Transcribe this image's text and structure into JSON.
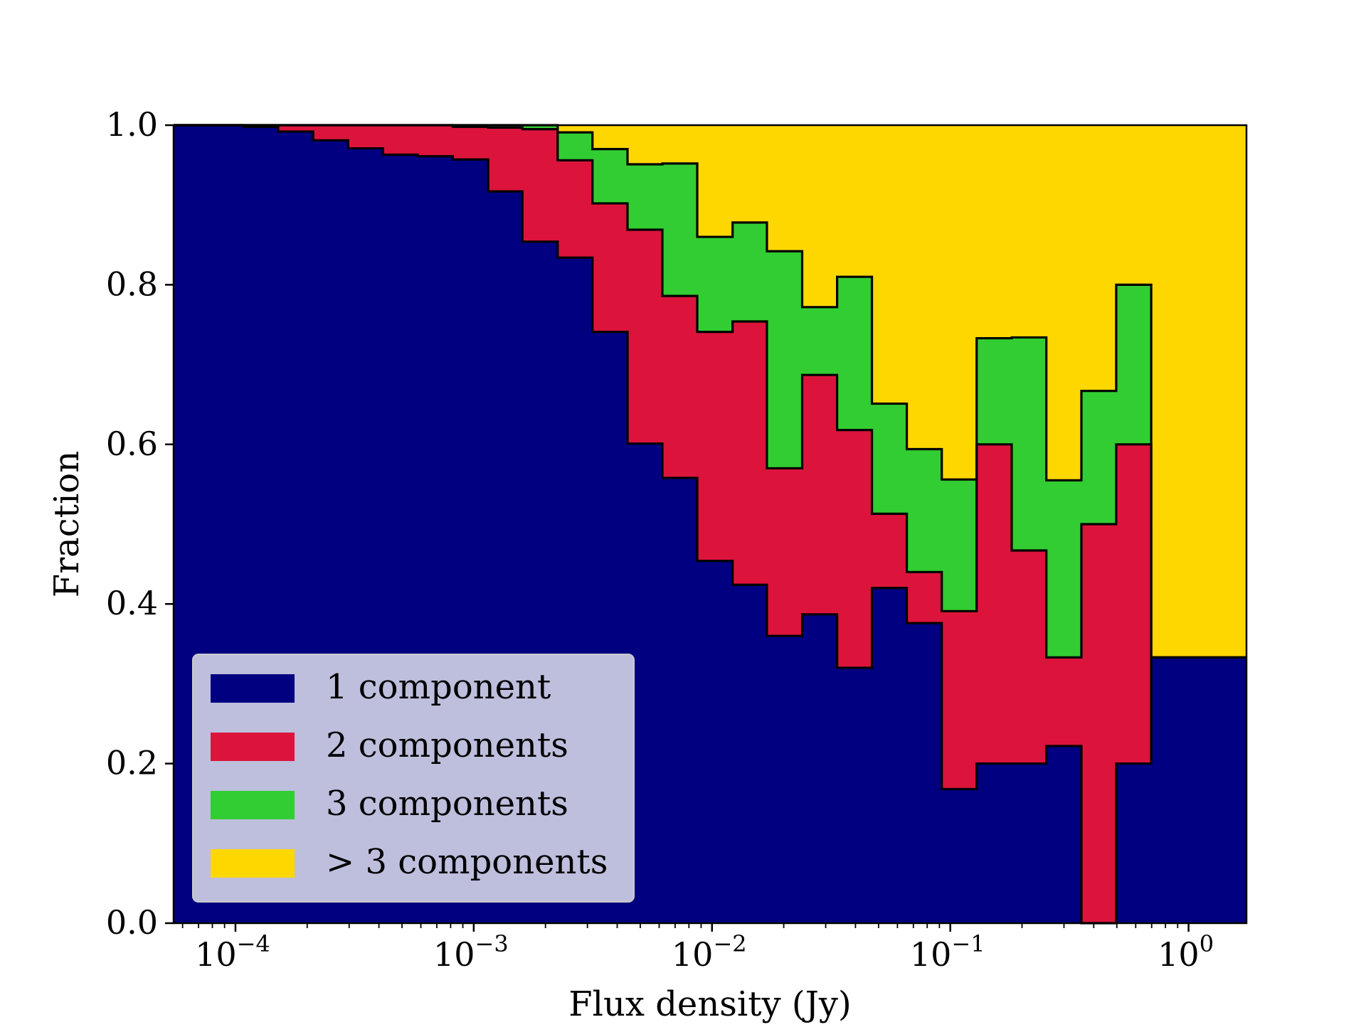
{
  "chart_data": {
    "type": "bar",
    "subtype": "stacked-step-histogram",
    "title": "",
    "xlabel": "Flux density (Jy)",
    "ylabel": "Fraction",
    "xscale": "log",
    "xlim": [
      5.5e-05,
      1.75
    ],
    "ylim": [
      0.0,
      1.0
    ],
    "grid": false,
    "legend_position": "lower-left",
    "x_ticks": [
      {
        "value": 0.0001,
        "base": "10",
        "exp": "−4"
      },
      {
        "value": 0.001,
        "base": "10",
        "exp": "−3"
      },
      {
        "value": 0.01,
        "base": "10",
        "exp": "−2"
      },
      {
        "value": 0.1,
        "base": "10",
        "exp": "−1"
      },
      {
        "value": 1,
        "base": "10",
        "exp": "0"
      }
    ],
    "y_ticks": [
      {
        "value": 0.0,
        "label": "0.0"
      },
      {
        "value": 0.2,
        "label": "0.2"
      },
      {
        "value": 0.4,
        "label": "0.4"
      },
      {
        "value": 0.6,
        "label": "0.6"
      },
      {
        "value": 0.8,
        "label": "0.8"
      },
      {
        "value": 1.0,
        "label": "1.0"
      }
    ],
    "bin_edges": [
      5.5e-05,
      7.7e-05,
      0.000108,
      0.000151,
      0.000212,
      0.000297,
      0.000416,
      0.000583,
      0.000817,
      0.00115,
      0.0016,
      0.00225,
      0.00315,
      0.00442,
      0.00619,
      0.00867,
      0.0122,
      0.017,
      0.0239,
      0.0335,
      0.0469,
      0.0657,
      0.0921,
      0.129,
      0.181,
      0.253,
      0.355,
      0.497,
      0.697,
      0.977,
      1.37,
      1.75
    ],
    "series": [
      {
        "name": "1 component",
        "color": "#000080",
        "values": [
          1.0,
          1.0,
          0.998,
          0.992,
          0.981,
          0.971,
          0.963,
          0.961,
          0.957,
          0.917,
          0.854,
          0.834,
          0.741,
          0.601,
          0.558,
          0.454,
          0.424,
          0.36,
          0.387,
          0.32,
          0.42,
          0.376,
          0.168,
          0.2,
          0.2,
          0.222,
          0.0,
          0.2,
          0.333,
          0.333,
          0.333
        ]
      },
      {
        "name": "2 components",
        "color": "#DC143C",
        "values": [
          0.0,
          0.0,
          0.002,
          0.008,
          0.019,
          0.029,
          0.037,
          0.039,
          0.041,
          0.08,
          0.141,
          0.122,
          0.161,
          0.268,
          0.228,
          0.287,
          0.33,
          0.21,
          0.3,
          0.298,
          0.093,
          0.064,
          0.223,
          0.4,
          0.267,
          0.111,
          0.5,
          0.4,
          0.0,
          0.0,
          0.0
        ]
      },
      {
        "name": "3 components",
        "color": "#32CD32",
        "values": [
          0.0,
          0.0,
          0.0,
          0.0,
          0.0,
          0.0,
          0.0,
          0.0,
          0.002,
          0.003,
          0.005,
          0.035,
          0.068,
          0.082,
          0.166,
          0.119,
          0.124,
          0.272,
          0.085,
          0.192,
          0.138,
          0.154,
          0.165,
          0.133,
          0.267,
          0.222,
          0.167,
          0.2,
          0.0,
          0.0,
          0.0
        ]
      },
      {
        "name": "> 3 components",
        "color": "#FFD700",
        "values": [
          0.0,
          0.0,
          0.0,
          0.0,
          0.0,
          0.0,
          0.0,
          0.0,
          0.0,
          0.0,
          0.0,
          0.009,
          0.03,
          0.049,
          0.048,
          0.14,
          0.122,
          0.158,
          0.228,
          0.19,
          0.349,
          0.406,
          0.444,
          0.267,
          0.266,
          0.445,
          0.333,
          0.2,
          0.667,
          0.667,
          0.667
        ]
      }
    ]
  }
}
